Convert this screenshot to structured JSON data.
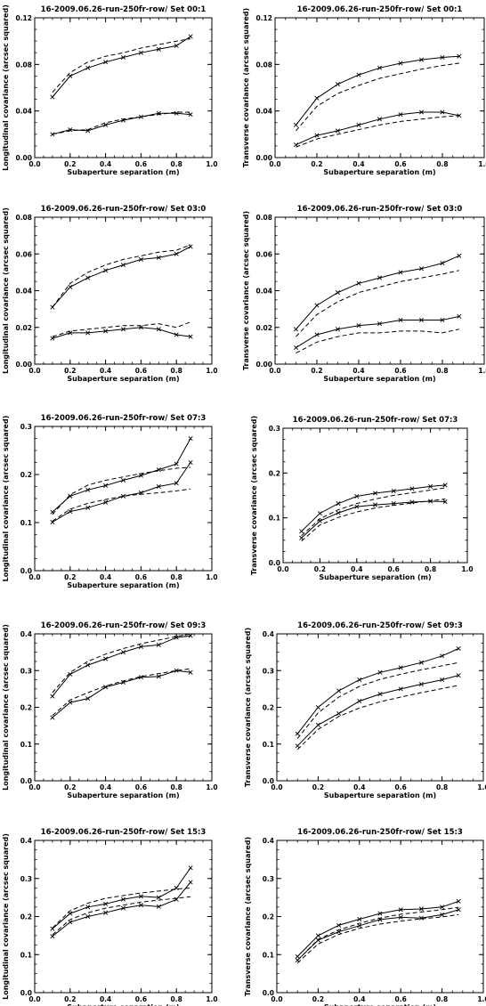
{
  "chart_data": [
    {
      "type": "line",
      "title": "16-2009.06.26-run-250fr-row/ Set 00:1",
      "xlabel": "Subaperture separation (m)",
      "ylabel": "Longitudinal covariance (arcsec squared)",
      "xlim": [
        0,
        1
      ],
      "ylim": [
        0,
        0.12
      ],
      "xticks": [
        "0.0",
        "0.2",
        "0.4",
        "0.6",
        "0.8",
        "1.0"
      ],
      "yticks": [
        "0.00",
        "0.04",
        "0.08",
        "0.12"
      ],
      "x": [
        0.1,
        0.2,
        0.3,
        0.4,
        0.5,
        0.6,
        0.7,
        0.8,
        0.88
      ],
      "series": [
        {
          "style": "solid-x",
          "values": [
            0.052,
            0.07,
            0.077,
            0.082,
            0.086,
            0.09,
            0.093,
            0.096,
            0.104
          ]
        },
        {
          "style": "dashed",
          "values": [
            0.056,
            0.073,
            0.082,
            0.087,
            0.09,
            0.094,
            0.097,
            0.1,
            0.102
          ]
        },
        {
          "style": "solid-x",
          "values": [
            0.02,
            0.024,
            0.023,
            0.028,
            0.032,
            0.035,
            0.038,
            0.038,
            0.037
          ]
        },
        {
          "style": "dashed",
          "values": [
            0.02,
            0.023,
            0.024,
            0.03,
            0.033,
            0.035,
            0.037,
            0.039,
            0.039
          ]
        }
      ]
    },
    {
      "type": "line",
      "title": "16-2009.06.26-run-250fr-row/ Set 00:1",
      "xlabel": "Subaperture separation (m)",
      "ylabel": "Transverse covariance (arcsec squared)",
      "xlim": [
        0,
        1
      ],
      "ylim": [
        0,
        0.12
      ],
      "xticks": [
        "0.0",
        "0.2",
        "0.4",
        "0.6",
        "0.8",
        "1.0"
      ],
      "yticks": [
        "0.00",
        "0.04",
        "0.08",
        "0.12"
      ],
      "x": [
        0.1,
        0.2,
        0.3,
        0.4,
        0.5,
        0.6,
        0.7,
        0.8,
        0.88
      ],
      "series": [
        {
          "style": "solid-x",
          "values": [
            0.028,
            0.051,
            0.063,
            0.071,
            0.077,
            0.081,
            0.084,
            0.086,
            0.087
          ]
        },
        {
          "style": "dashed",
          "values": [
            0.023,
            0.044,
            0.055,
            0.062,
            0.068,
            0.072,
            0.076,
            0.079,
            0.081
          ]
        },
        {
          "style": "solid-x",
          "values": [
            0.011,
            0.019,
            0.023,
            0.028,
            0.033,
            0.037,
            0.039,
            0.039,
            0.036
          ]
        },
        {
          "style": "dashed",
          "values": [
            0.009,
            0.016,
            0.02,
            0.024,
            0.028,
            0.031,
            0.033,
            0.035,
            0.036
          ]
        }
      ]
    },
    {
      "type": "line",
      "title": "16-2009.06.26-run-250fr-row/ Set 03:0",
      "xlabel": "Subaperture separation (m)",
      "ylabel": "Longitudinal covariance (arcsec squared)",
      "xlim": [
        0,
        1
      ],
      "ylim": [
        0,
        0.08
      ],
      "xticks": [
        "0.0",
        "0.2",
        "0.4",
        "0.6",
        "0.8",
        "1.0"
      ],
      "yticks": [
        "0.00",
        "0.02",
        "0.04",
        "0.06",
        "0.08"
      ],
      "x": [
        0.1,
        0.2,
        0.3,
        0.4,
        0.5,
        0.6,
        0.7,
        0.8,
        0.88
      ],
      "series": [
        {
          "style": "solid-x",
          "values": [
            0.031,
            0.042,
            0.047,
            0.051,
            0.054,
            0.057,
            0.058,
            0.06,
            0.064
          ]
        },
        {
          "style": "dashed",
          "values": [
            0.031,
            0.044,
            0.05,
            0.054,
            0.057,
            0.059,
            0.061,
            0.062,
            0.065
          ]
        },
        {
          "style": "solid-x",
          "values": [
            0.014,
            0.017,
            0.017,
            0.018,
            0.019,
            0.02,
            0.019,
            0.016,
            0.015
          ]
        },
        {
          "style": "dashed",
          "values": [
            0.015,
            0.018,
            0.019,
            0.02,
            0.021,
            0.021,
            0.022,
            0.02,
            0.023
          ]
        }
      ]
    },
    {
      "type": "line",
      "title": "16-2009.06.26-run-250fr-row/ Set 03:0",
      "xlabel": "Subaperture separation (m)",
      "ylabel": "Transverse covariance (arcsec squared)",
      "xlim": [
        0,
        1
      ],
      "ylim": [
        0,
        0.08
      ],
      "xticks": [
        "0.0",
        "0.2",
        "0.4",
        "0.6",
        "0.8",
        "1.0"
      ],
      "yticks": [
        "0.00",
        "0.02",
        "0.04",
        "0.06",
        "0.08"
      ],
      "x": [
        0.1,
        0.2,
        0.3,
        0.4,
        0.5,
        0.6,
        0.7,
        0.8,
        0.88
      ],
      "series": [
        {
          "style": "solid-x",
          "values": [
            0.019,
            0.032,
            0.039,
            0.044,
            0.047,
            0.05,
            0.052,
            0.055,
            0.059
          ]
        },
        {
          "style": "dashed",
          "values": [
            0.015,
            0.027,
            0.034,
            0.039,
            0.042,
            0.045,
            0.047,
            0.049,
            0.051
          ]
        },
        {
          "style": "solid-x",
          "values": [
            0.009,
            0.016,
            0.019,
            0.021,
            0.022,
            0.024,
            0.024,
            0.024,
            0.026
          ]
        },
        {
          "style": "dashed",
          "values": [
            0.006,
            0.012,
            0.015,
            0.017,
            0.017,
            0.018,
            0.018,
            0.017,
            0.019
          ]
        }
      ]
    },
    {
      "type": "line",
      "title": "16-2009.06.26-run-250fr-row/ Set 07:3",
      "xlabel": "Subaperture separation (m)",
      "ylabel": "Longitudinal covariance (arcsec squared)",
      "xlim": [
        0,
        1
      ],
      "ylim": [
        0,
        0.3
      ],
      "xticks": [
        "0.0",
        "0.2",
        "0.4",
        "0.6",
        "0.8",
        "1.0"
      ],
      "yticks": [
        "0.0",
        "0.1",
        "0.2",
        "0.3"
      ],
      "x": [
        0.1,
        0.2,
        0.3,
        0.4,
        0.5,
        0.6,
        0.7,
        0.8,
        0.88
      ],
      "series": [
        {
          "style": "solid-x",
          "values": [
            0.122,
            0.155,
            0.168,
            0.177,
            0.188,
            0.198,
            0.21,
            0.222,
            0.275
          ]
        },
        {
          "style": "dashed",
          "values": [
            0.117,
            0.158,
            0.178,
            0.188,
            0.195,
            0.202,
            0.208,
            0.213,
            0.215
          ]
        },
        {
          "style": "solid-x",
          "values": [
            0.101,
            0.123,
            0.131,
            0.142,
            0.155,
            0.162,
            0.175,
            0.182,
            0.225
          ]
        },
        {
          "style": "dashed",
          "values": [
            0.103,
            0.128,
            0.14,
            0.148,
            0.155,
            0.159,
            0.162,
            0.166,
            0.17
          ]
        }
      ]
    },
    {
      "type": "line",
      "title": "16-2009.06.26-run-250fr-row/ Set 07:3",
      "xlabel": "Subaperture separation (m)",
      "ylabel": "Transverse covariance (arcsec squared)",
      "xlim": [
        0,
        1
      ],
      "ylim": [
        0,
        0.3
      ],
      "xticks": [
        "0.0",
        "0.2",
        "0.4",
        "0.6",
        "0.8",
        "1.0"
      ],
      "yticks": [
        "0.0",
        "0.1",
        "0.2",
        "0.3"
      ],
      "x": [
        0.1,
        0.2,
        0.3,
        0.4,
        0.5,
        0.6,
        0.7,
        0.8,
        0.88
      ],
      "series": [
        {
          "style": "solid-x",
          "values": [
            0.07,
            0.11,
            0.132,
            0.148,
            0.155,
            0.16,
            0.165,
            0.17,
            0.173
          ]
        },
        {
          "style": "dashed",
          "values": [
            0.06,
            0.098,
            0.118,
            0.132,
            0.142,
            0.15,
            0.156,
            0.162,
            0.167
          ]
        },
        {
          "style": "solid-x",
          "values": [
            0.055,
            0.093,
            0.111,
            0.125,
            0.129,
            0.132,
            0.135,
            0.137,
            0.136
          ]
        },
        {
          "style": "dashed",
          "values": [
            0.048,
            0.084,
            0.101,
            0.113,
            0.122,
            0.128,
            0.133,
            0.138,
            0.142
          ]
        }
      ]
    },
    {
      "type": "line",
      "title": "16-2009.06.26-run-250fr-row/ Set 09:3",
      "xlabel": "Subaperture separation (m)",
      "ylabel": "Longitudinal covariance (arcsec squared)",
      "xlim": [
        0,
        1
      ],
      "ylim": [
        0,
        0.4
      ],
      "xticks": [
        "0.0",
        "0.2",
        "0.4",
        "0.6",
        "0.8",
        "1.0"
      ],
      "yticks": [
        "0.0",
        "0.1",
        "0.2",
        "0.3",
        "0.4"
      ],
      "x": [
        0.1,
        0.2,
        0.3,
        0.4,
        0.5,
        0.6,
        0.7,
        0.8,
        0.88
      ],
      "series": [
        {
          "style": "solid-x",
          "values": [
            0.23,
            0.29,
            0.315,
            0.332,
            0.35,
            0.365,
            0.37,
            0.39,
            0.395
          ]
        },
        {
          "style": "dashed",
          "values": [
            0.24,
            0.295,
            0.325,
            0.345,
            0.36,
            0.373,
            0.383,
            0.393,
            0.4
          ]
        },
        {
          "style": "solid-x",
          "values": [
            0.172,
            0.213,
            0.224,
            0.255,
            0.268,
            0.282,
            0.284,
            0.3,
            0.295
          ]
        },
        {
          "style": "dashed",
          "values": [
            0.178,
            0.22,
            0.24,
            0.258,
            0.272,
            0.284,
            0.292,
            0.3,
            0.305
          ]
        }
      ]
    },
    {
      "type": "line",
      "title": "16-2009.06.26-run-250fr-row/ Set 09:3",
      "xlabel": "Subaperture separation (m)",
      "ylabel": "Transverse covariance (arcsec squared)",
      "xlim": [
        0,
        1
      ],
      "ylim": [
        0,
        0.4
      ],
      "xticks": [
        "0.0",
        "0.2",
        "0.4",
        "0.6",
        "0.8",
        "1.0"
      ],
      "yticks": [
        "0.0",
        "0.1",
        "0.2",
        "0.3",
        "0.4"
      ],
      "x": [
        0.1,
        0.2,
        0.3,
        0.4,
        0.5,
        0.6,
        0.7,
        0.8,
        0.88
      ],
      "series": [
        {
          "style": "solid-x",
          "values": [
            0.128,
            0.2,
            0.245,
            0.275,
            0.295,
            0.308,
            0.322,
            0.34,
            0.36
          ]
        },
        {
          "style": "dashed",
          "values": [
            0.115,
            0.185,
            0.228,
            0.257,
            0.276,
            0.29,
            0.302,
            0.313,
            0.322
          ]
        },
        {
          "style": "solid-x",
          "values": [
            0.095,
            0.152,
            0.183,
            0.217,
            0.236,
            0.25,
            0.263,
            0.275,
            0.287
          ]
        },
        {
          "style": "dashed",
          "values": [
            0.085,
            0.14,
            0.175,
            0.198,
            0.215,
            0.228,
            0.24,
            0.251,
            0.26
          ]
        }
      ]
    },
    {
      "type": "line",
      "title": "16-2009.06.26-run-250fr-row/ Set 15:3",
      "xlabel": "Subaperture separation (m)",
      "ylabel": "Longitudinal covariance (arcsec squared)",
      "xlim": [
        0,
        1
      ],
      "ylim": [
        0,
        0.4
      ],
      "xticks": [
        "0.0",
        "0.2",
        "0.4",
        "0.6",
        "0.8",
        "1.0"
      ],
      "yticks": [
        "0.0",
        "0.1",
        "0.2",
        "0.3",
        "0.4"
      ],
      "x": [
        0.1,
        0.2,
        0.3,
        0.4,
        0.5,
        0.6,
        0.7,
        0.8,
        0.88
      ],
      "series": [
        {
          "style": "solid-x",
          "values": [
            0.168,
            0.208,
            0.225,
            0.233,
            0.245,
            0.253,
            0.25,
            0.275,
            0.328
          ]
        },
        {
          "style": "dashed",
          "values": [
            0.17,
            0.215,
            0.235,
            0.248,
            0.255,
            0.262,
            0.267,
            0.272,
            0.275
          ]
        },
        {
          "style": "solid-x",
          "values": [
            0.148,
            0.185,
            0.2,
            0.21,
            0.222,
            0.23,
            0.226,
            0.245,
            0.29
          ]
        },
        {
          "style": "dashed",
          "values": [
            0.152,
            0.192,
            0.21,
            0.222,
            0.23,
            0.238,
            0.243,
            0.248,
            0.252
          ]
        }
      ]
    },
    {
      "type": "line",
      "title": "16-2009.06.26-run-250fr-row/ Set 15:3",
      "xlabel": "Subaperture separation (m)",
      "ylabel": "Transverse covariance (arcsec squared)",
      "xlim": [
        0,
        1
      ],
      "ylim": [
        0,
        0.4
      ],
      "xticks": [
        "0.0",
        "0.2",
        "0.4",
        "0.6",
        "0.8",
        "1.0"
      ],
      "yticks": [
        "0.0",
        "0.1",
        "0.2",
        "0.3",
        "0.4"
      ],
      "x": [
        0.1,
        0.2,
        0.3,
        0.4,
        0.5,
        0.6,
        0.7,
        0.8,
        0.88
      ],
      "series": [
        {
          "style": "solid-x",
          "values": [
            0.095,
            0.15,
            0.177,
            0.193,
            0.208,
            0.218,
            0.22,
            0.225,
            0.24
          ]
        },
        {
          "style": "dashed",
          "values": [
            0.085,
            0.14,
            0.165,
            0.182,
            0.196,
            0.206,
            0.212,
            0.218,
            0.224
          ]
        },
        {
          "style": "solid-x",
          "values": [
            0.085,
            0.138,
            0.16,
            0.176,
            0.192,
            0.198,
            0.196,
            0.205,
            0.218
          ]
        },
        {
          "style": "dashed",
          "values": [
            0.078,
            0.128,
            0.153,
            0.169,
            0.18,
            0.188,
            0.194,
            0.199,
            0.205
          ]
        }
      ]
    }
  ]
}
